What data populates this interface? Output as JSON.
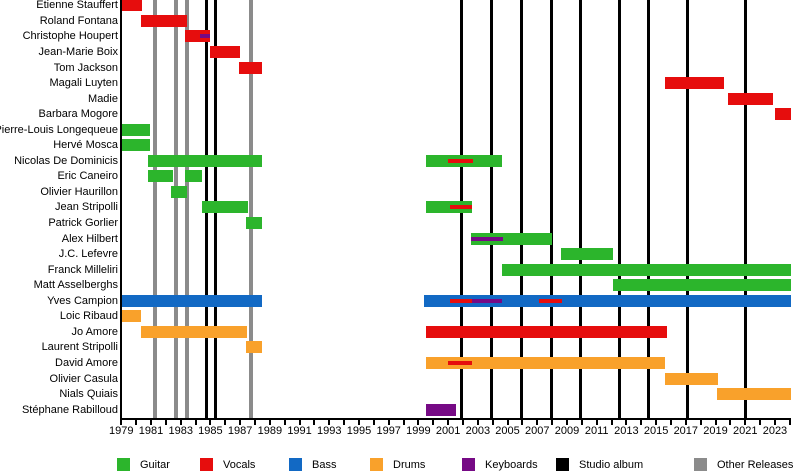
{
  "colors": {
    "guitar": "#2CB52C",
    "vocals": "#E60D0D",
    "bass": "#1269C4",
    "drums": "#F9A12B",
    "keyboards": "#760A85",
    "studio_album": "#000000",
    "other_releases": "#8B8B8B",
    "axis": "#000000",
    "background": "#FFFFFF"
  },
  "chart_data": {
    "type": "bar",
    "subtype": "member-timeline-gantt",
    "x_axis": {
      "min": 1979,
      "max": 2024.1,
      "tick_every": 1,
      "label_years": [
        1979,
        1981,
        1983,
        1985,
        1987,
        1989,
        1991,
        1993,
        1995,
        1997,
        1999,
        2001,
        2003,
        2005,
        2007,
        2009,
        2011,
        2013,
        2015,
        2017,
        2019,
        2021,
        2023
      ]
    },
    "rows": [
      {
        "label": "Etienne Stauffert",
        "segments": [
          {
            "start": 1979.0,
            "end": 1980.4,
            "role": "vocals"
          }
        ],
        "overlays": []
      },
      {
        "label": "Roland Fontana",
        "segments": [
          {
            "start": 1980.3,
            "end": 1983.4,
            "role": "vocals"
          }
        ],
        "overlays": []
      },
      {
        "label": "Christophe Houpert",
        "segments": [
          {
            "start": 1983.3,
            "end": 1985.0,
            "role": "vocals"
          }
        ],
        "overlays": [
          {
            "start": 1984.3,
            "end": 1985.0,
            "role": "keyboards"
          }
        ]
      },
      {
        "label": "Jean-Marie Boix",
        "segments": [
          {
            "start": 1984.95,
            "end": 1987.0,
            "role": "vocals"
          }
        ],
        "overlays": []
      },
      {
        "label": "Tom Jackson",
        "segments": [
          {
            "start": 1986.9,
            "end": 1988.45,
            "role": "vocals"
          }
        ],
        "overlays": []
      },
      {
        "label": "Magali Luyten",
        "segments": [
          {
            "start": 2015.6,
            "end": 2019.6,
            "role": "vocals"
          }
        ],
        "overlays": []
      },
      {
        "label": "Madie",
        "segments": [
          {
            "start": 2019.85,
            "end": 2022.9,
            "role": "vocals"
          }
        ],
        "overlays": []
      },
      {
        "label": "Barbara Mogore",
        "segments": [
          {
            "start": 2023.0,
            "end": 2024.1,
            "role": "vocals"
          }
        ],
        "overlays": []
      },
      {
        "label": "Pierre-Louis Longequeue",
        "segments": [
          {
            "start": 1979.0,
            "end": 1980.9,
            "role": "guitar"
          }
        ],
        "overlays": []
      },
      {
        "label": "Hervé Mosca",
        "segments": [
          {
            "start": 1979.0,
            "end": 1980.9,
            "role": "guitar"
          }
        ],
        "overlays": []
      },
      {
        "label": "Nicolas De Dominicis",
        "segments": [
          {
            "start": 1980.8,
            "end": 1988.45,
            "role": "guitar"
          },
          {
            "start": 1999.5,
            "end": 2004.6,
            "role": "guitar"
          }
        ],
        "overlays": [
          {
            "start": 2001.0,
            "end": 2002.7,
            "role": "vocals"
          }
        ]
      },
      {
        "label": "Eric Caneiro",
        "segments": [
          {
            "start": 1980.8,
            "end": 1982.5,
            "role": "guitar"
          },
          {
            "start": 1983.3,
            "end": 1984.4,
            "role": "guitar"
          }
        ],
        "overlays": []
      },
      {
        "label": "Olivier Haurillon",
        "segments": [
          {
            "start": 1982.35,
            "end": 1983.4,
            "role": "guitar"
          }
        ],
        "overlays": []
      },
      {
        "label": "Jean Stripolli",
        "segments": [
          {
            "start": 1984.4,
            "end": 1987.55,
            "role": "guitar"
          },
          {
            "start": 1999.5,
            "end": 2002.6,
            "role": "guitar"
          }
        ],
        "overlays": [
          {
            "start": 2001.1,
            "end": 2002.6,
            "role": "vocals"
          }
        ]
      },
      {
        "label": "Patrick Gorlier",
        "segments": [
          {
            "start": 1987.4,
            "end": 1988.5,
            "role": "guitar"
          }
        ],
        "overlays": []
      },
      {
        "label": "Alex Hilbert",
        "segments": [
          {
            "start": 2002.55,
            "end": 2008.0,
            "role": "guitar"
          }
        ],
        "overlays": [
          {
            "start": 2002.55,
            "end": 2004.7,
            "role": "keyboards"
          }
        ]
      },
      {
        "label": "J.C. Lefevre",
        "segments": [
          {
            "start": 2008.6,
            "end": 2012.1,
            "role": "guitar"
          }
        ],
        "overlays": []
      },
      {
        "label": "Franck Milleliri",
        "segments": [
          {
            "start": 2004.6,
            "end": 2024.1,
            "role": "guitar"
          }
        ],
        "overlays": []
      },
      {
        "label": "Matt Asselberghs",
        "segments": [
          {
            "start": 2012.1,
            "end": 2024.1,
            "role": "guitar"
          }
        ],
        "overlays": []
      },
      {
        "label": "Yves Campion",
        "segments": [
          {
            "start": 1979.0,
            "end": 1988.45,
            "role": "bass"
          },
          {
            "start": 1999.4,
            "end": 2024.1,
            "role": "bass"
          }
        ],
        "overlays": [
          {
            "start": 2001.1,
            "end": 2002.6,
            "role": "vocals"
          },
          {
            "start": 2002.6,
            "end": 2004.65,
            "role": "keyboards"
          },
          {
            "start": 2007.15,
            "end": 2008.65,
            "role": "vocals"
          }
        ]
      },
      {
        "label": "Loic Ribaud",
        "segments": [
          {
            "start": 1979.0,
            "end": 1980.35,
            "role": "drums"
          }
        ],
        "overlays": []
      },
      {
        "label": "Jo Amore",
        "segments": [
          {
            "start": 1980.3,
            "end": 1987.45,
            "role": "drums"
          },
          {
            "start": 1999.5,
            "end": 2015.75,
            "role": "vocals"
          }
        ],
        "overlays": []
      },
      {
        "label": "Laurent Stripolli",
        "segments": [
          {
            "start": 1987.4,
            "end": 1988.45,
            "role": "drums"
          }
        ],
        "overlays": []
      },
      {
        "label": "David Amore",
        "segments": [
          {
            "start": 1999.5,
            "end": 2015.6,
            "role": "drums"
          }
        ],
        "overlays": [
          {
            "start": 2001.0,
            "end": 2002.6,
            "role": "vocals"
          }
        ]
      },
      {
        "label": "Olivier Casula",
        "segments": [
          {
            "start": 2015.6,
            "end": 2019.2,
            "role": "drums"
          }
        ],
        "overlays": []
      },
      {
        "label": "Nials Quiais",
        "segments": [
          {
            "start": 2019.1,
            "end": 2024.05,
            "role": "drums"
          }
        ],
        "overlays": []
      },
      {
        "label": "Stéphane Rabilloud",
        "segments": [
          {
            "start": 1999.5,
            "end": 2001.55,
            "role": "keyboards"
          }
        ],
        "overlays": []
      }
    ],
    "events": {
      "studio_albums": [
        1984.74,
        1985.34,
        2001.87,
        2003.9,
        2005.95,
        2007.97,
        2009.92,
        2012.55,
        2014.5,
        2017.13,
        2021.0
      ],
      "other_releases": [
        1981.27,
        1982.65,
        1983.42,
        1987.7
      ]
    },
    "legend": [
      {
        "label": "Guitar",
        "color_key": "guitar"
      },
      {
        "label": "Vocals",
        "color_key": "vocals"
      },
      {
        "label": "Bass",
        "color_key": "bass"
      },
      {
        "label": "Drums",
        "color_key": "drums"
      },
      {
        "label": "Keyboards",
        "color_key": "keyboards"
      },
      {
        "label": "Studio album",
        "color_key": "studio_album"
      },
      {
        "label": "Other Releases",
        "color_key": "other_releases"
      }
    ]
  }
}
